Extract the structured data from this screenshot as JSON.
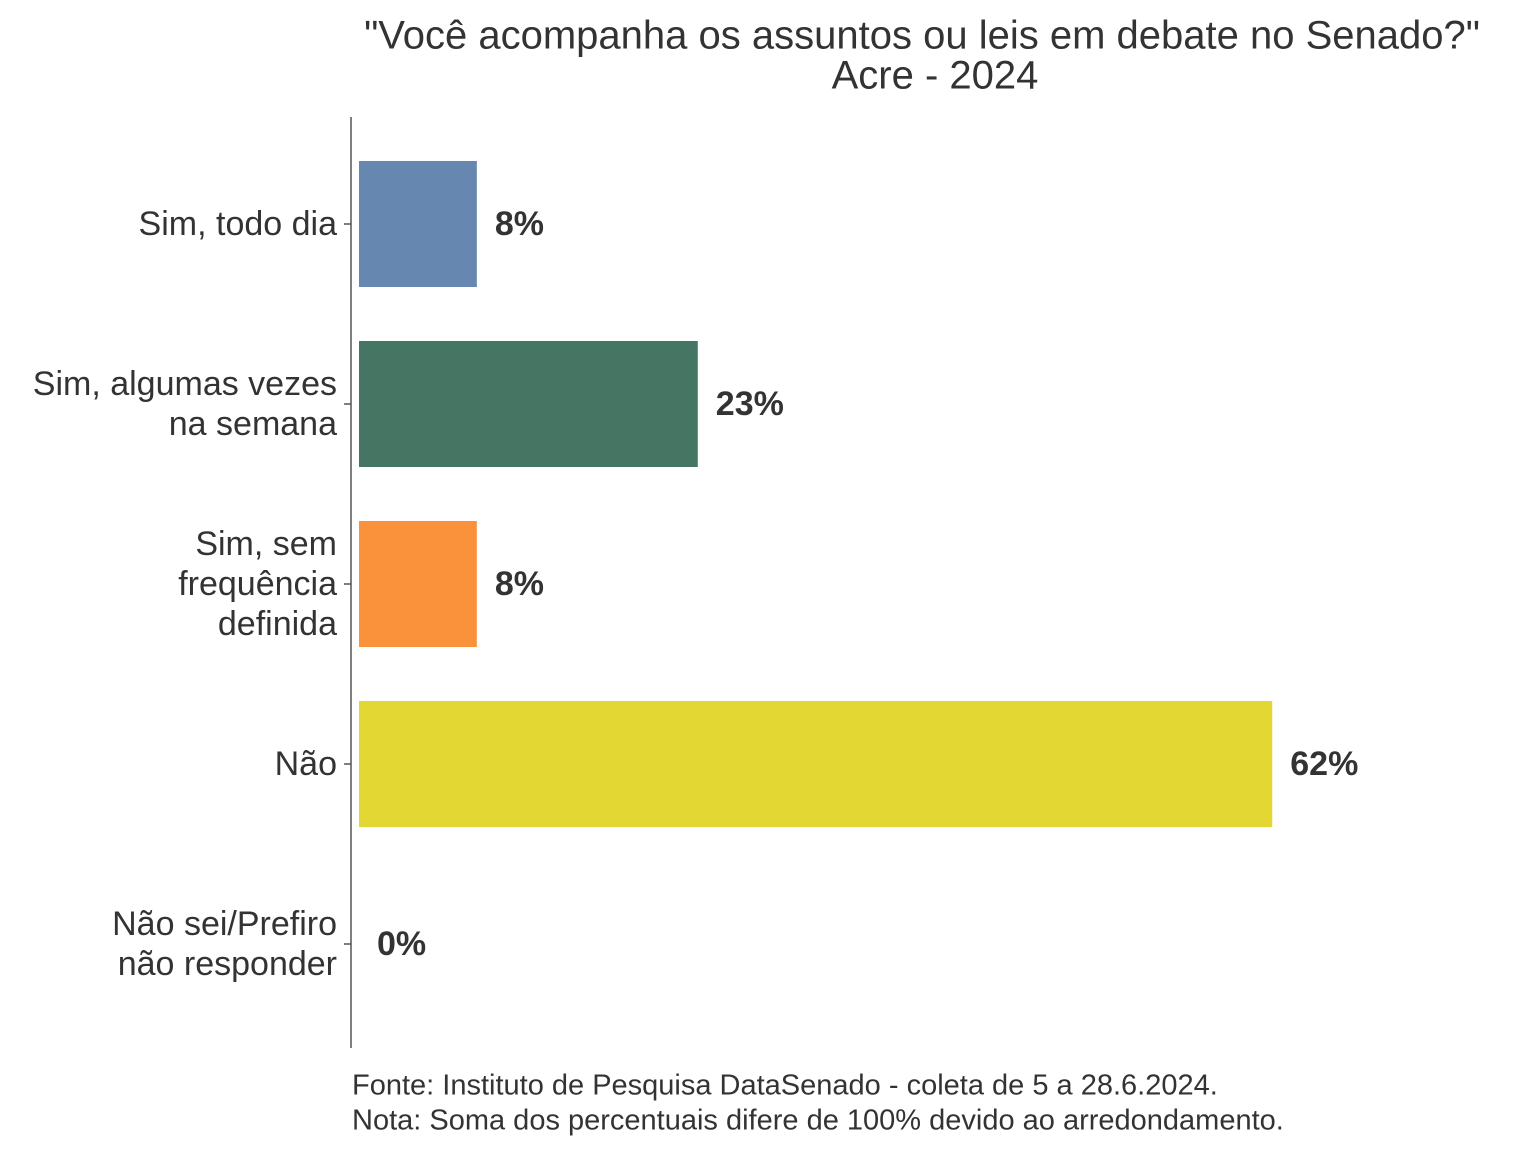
{
  "chart_data": {
    "type": "bar",
    "orientation": "horizontal",
    "title": "\"Você acompanha os assuntos ou leis em debate no Senado?\"",
    "subtitle": "Acre - 2024",
    "categories": [
      [
        "Sim, todo dia"
      ],
      [
        "Sim, algumas vezes",
        "na semana"
      ],
      [
        "Sim, sem",
        "frequência",
        "definida"
      ],
      [
        "Não"
      ],
      [
        "Não sei/Prefiro",
        "não responder"
      ]
    ],
    "values": [
      8,
      23,
      8,
      62,
      0
    ],
    "value_labels": [
      "8%",
      "23%",
      "8%",
      "62%",
      "0%"
    ],
    "colors": [
      "#6688b0",
      "#457563",
      "#fa923c",
      "#e3d833",
      "#8c8c8c"
    ],
    "notes": [
      "Fonte: Instituto de Pesquisa DataSenado - coleta de 5 a 28.6.2024.",
      "Nota: Soma dos percentuais difere de 100% devido ao arredondamento."
    ]
  }
}
